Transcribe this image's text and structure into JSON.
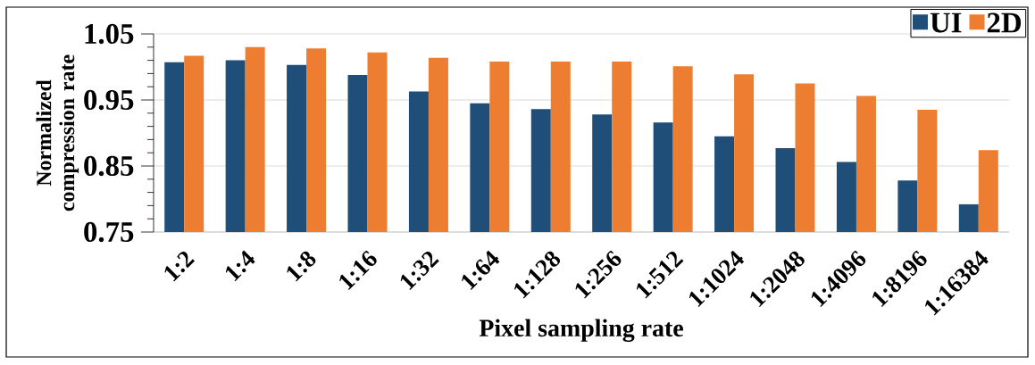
{
  "chart_data": {
    "type": "bar",
    "xlabel": "Pixel sampling rate",
    "ylabel": "Normalized compression rate",
    "categories": [
      "1:2",
      "1:4",
      "1:8",
      "1:16",
      "1:32",
      "1:64",
      "1:128",
      "1:256",
      "1:512",
      "1:1024",
      "1:2048",
      "1:4096",
      "1:8196",
      "1:16384"
    ],
    "series": [
      {
        "name": "UI",
        "color": "#1f4e79",
        "values": [
          1.007,
          1.01,
          1.003,
          0.988,
          0.963,
          0.945,
          0.936,
          0.928,
          0.916,
          0.895,
          0.877,
          0.856,
          0.828,
          0.792
        ]
      },
      {
        "name": "2D",
        "color": "#ed7d31",
        "values": [
          1.017,
          1.03,
          1.028,
          1.022,
          1.014,
          1.008,
          1.008,
          1.008,
          1.001,
          0.989,
          0.975,
          0.956,
          0.935,
          0.874
        ]
      }
    ],
    "ylim": [
      0.75,
      1.05
    ],
    "yticks": [
      0.75,
      0.85,
      0.95,
      1.05
    ],
    "grid": "y",
    "legend": "top right"
  }
}
